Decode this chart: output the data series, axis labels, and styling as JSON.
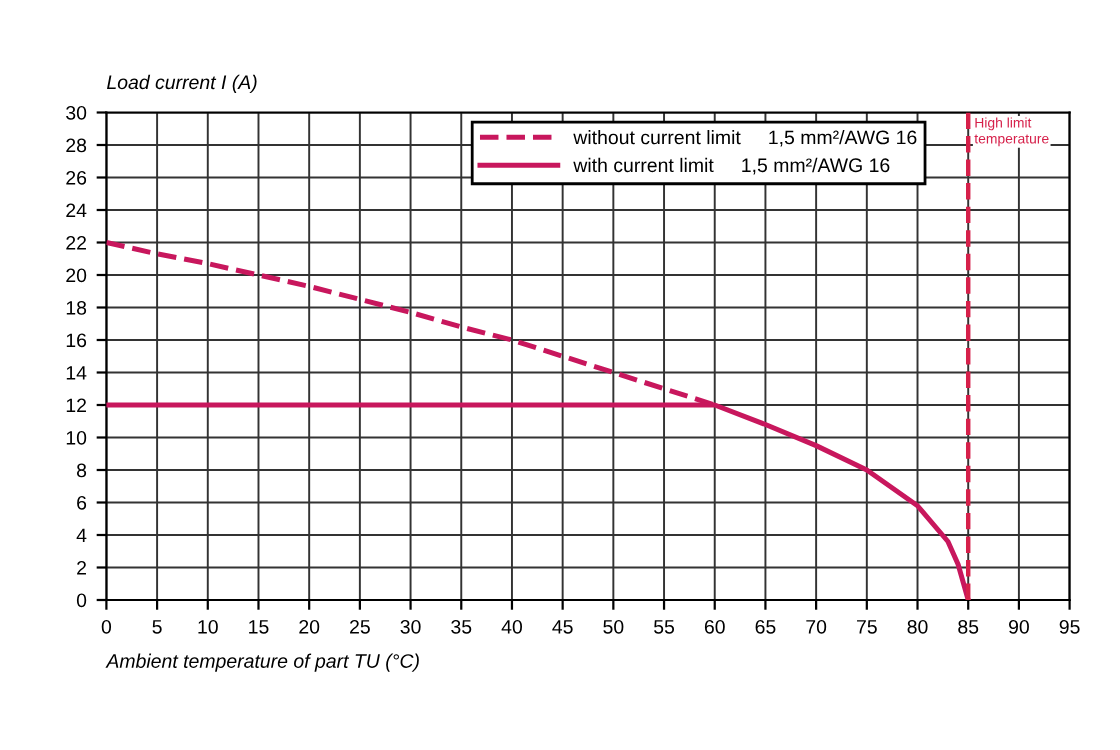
{
  "chart_data": {
    "type": "line",
    "xlabel": "Ambient temperature of part TU (°C)",
    "ylabel": "Load current I (A)",
    "xlim": [
      0,
      95
    ],
    "ylim": [
      0,
      30
    ],
    "xticks": [
      0,
      5,
      10,
      15,
      20,
      25,
      30,
      35,
      40,
      45,
      50,
      55,
      60,
      65,
      70,
      75,
      80,
      85,
      90,
      95
    ],
    "yticks": [
      0,
      2,
      4,
      6,
      8,
      10,
      12,
      14,
      16,
      18,
      20,
      22,
      24,
      26,
      28,
      30
    ],
    "grid": true,
    "legend": "top right",
    "marker": "none",
    "series": [
      {
        "name": "without current limit     1,5 mm²/AWG 16",
        "color": "#c8175d",
        "line_style": "dashed",
        "x": [
          0,
          5,
          10,
          15,
          20,
          25,
          30,
          35,
          40,
          45,
          50,
          55,
          60
        ],
        "values": [
          22,
          21.3,
          20.7,
          20,
          19.3,
          18.5,
          17.7,
          16.8,
          16,
          15,
          14,
          13,
          12
        ]
      },
      {
        "name": "with current limit     1,5 mm²/AWG 16",
        "color": "#c8175d",
        "line_style": "solid",
        "x": [
          0,
          60,
          65,
          70,
          75,
          80,
          83,
          84,
          85
        ],
        "values": [
          12,
          12,
          10.8,
          9.5,
          8,
          5.8,
          3.6,
          2.2,
          0
        ]
      }
    ],
    "ref_lines": [
      {
        "axis": "x",
        "value": 85,
        "label": "High limit temperature",
        "color": "#d6204a",
        "line_style": "dashed"
      }
    ]
  }
}
